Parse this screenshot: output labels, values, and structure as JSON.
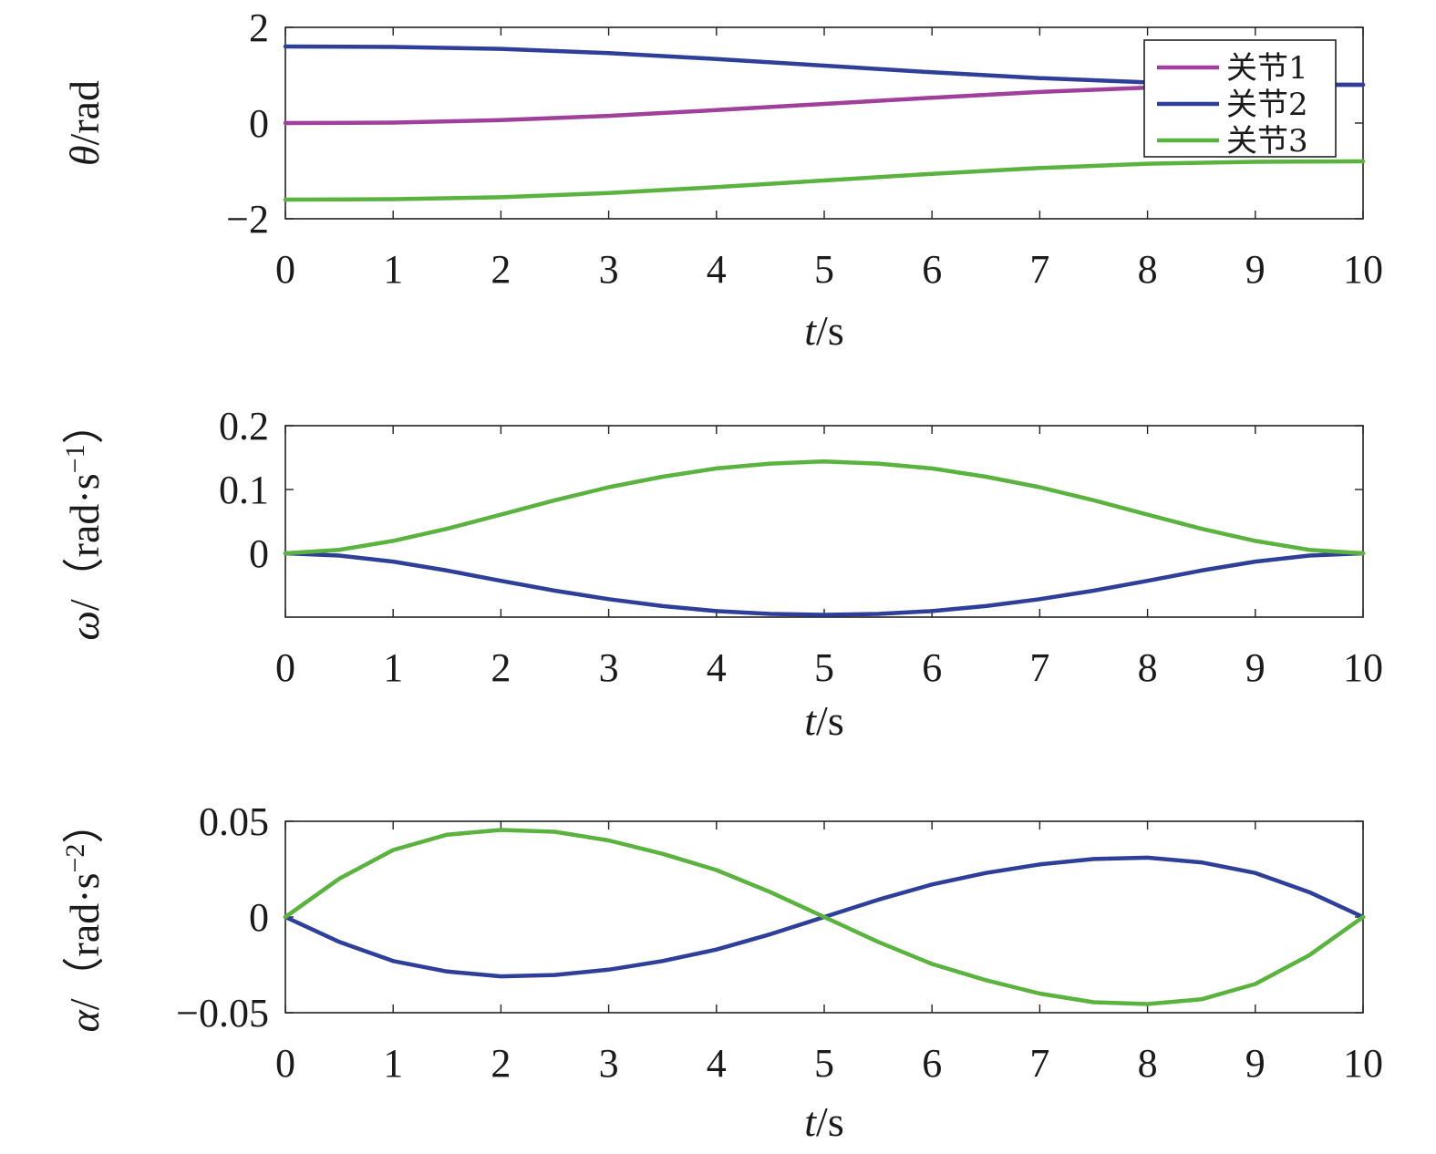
{
  "chart_data": [
    {
      "type": "line",
      "xlabel_var": "t",
      "xlabel_unit": "/s",
      "ylabel_var": "θ",
      "ylabel_unit": "/rad",
      "xlim": [
        0,
        10
      ],
      "ylim": [
        -2,
        2
      ],
      "x_ticks": [
        "0",
        "1",
        "2",
        "3",
        "4",
        "5",
        "6",
        "7",
        "8",
        "9",
        "10"
      ],
      "y_ticks": [
        {
          "v": 2,
          "label": "2"
        },
        {
          "v": 0,
          "label": "0"
        },
        {
          "v": -2,
          "label": "−2"
        }
      ],
      "grid": false,
      "legend_position": "top-right",
      "series": [
        {
          "name": "关节1",
          "color": "#a0409c",
          "x": [
            0,
            1,
            2,
            3,
            4,
            5,
            6,
            7,
            8,
            9,
            10
          ],
          "values": [
            0.0,
            0.01,
            0.06,
            0.15,
            0.27,
            0.4,
            0.53,
            0.65,
            0.74,
            0.79,
            0.8
          ]
        },
        {
          "name": "关节2",
          "color": "#2e3f9a",
          "x": [
            0,
            1,
            2,
            3,
            4,
            5,
            6,
            7,
            8,
            9,
            10
          ],
          "values": [
            1.6,
            1.59,
            1.55,
            1.46,
            1.34,
            1.2,
            1.06,
            0.94,
            0.85,
            0.81,
            0.8
          ]
        },
        {
          "name": "关节3",
          "color": "#5bb33f",
          "x": [
            0,
            1,
            2,
            3,
            4,
            5,
            6,
            7,
            8,
            9,
            10
          ],
          "values": [
            -1.6,
            -1.59,
            -1.55,
            -1.46,
            -1.34,
            -1.2,
            -1.06,
            -0.94,
            -0.85,
            -0.81,
            -0.8
          ]
        }
      ]
    },
    {
      "type": "line",
      "xlabel_var": "t",
      "xlabel_unit": "/s",
      "ylabel_var": "ω",
      "ylabel_unit": "/（rad·s",
      "ylabel_sup": "−1",
      "ylabel_close": "）",
      "xlim": [
        0,
        10
      ],
      "ylim": [
        -0.1,
        0.2
      ],
      "x_ticks": [
        "0",
        "1",
        "2",
        "3",
        "4",
        "5",
        "6",
        "7",
        "8",
        "9",
        "10"
      ],
      "y_ticks": [
        {
          "v": 0.2,
          "label": "0.2"
        },
        {
          "v": 0.1,
          "label": "0.1"
        },
        {
          "v": 0,
          "label": "0"
        }
      ],
      "grid": false,
      "series": [
        {
          "color": "#2e3f9a",
          "x": [
            0,
            0.5,
            1,
            1.5,
            2,
            2.5,
            3,
            3.5,
            4,
            4.5,
            5,
            5.5,
            6,
            6.5,
            7,
            7.5,
            8,
            8.5,
            9,
            9.5,
            10
          ],
          "values": [
            0,
            -0.0035,
            -0.013,
            -0.027,
            -0.0432,
            -0.0586,
            -0.0718,
            -0.0827,
            -0.0905,
            -0.095,
            -0.0965,
            -0.095,
            -0.0905,
            -0.0827,
            -0.0718,
            -0.0586,
            -0.0432,
            -0.027,
            -0.013,
            -0.0035,
            0
          ]
        },
        {
          "color": "#5bb33f",
          "x": [
            0,
            0.5,
            1,
            1.5,
            2,
            2.5,
            3,
            3.5,
            4,
            4.5,
            5,
            5.5,
            6,
            6.5,
            7,
            7.5,
            8,
            8.5,
            9,
            9.5,
            10
          ],
          "values": [
            0,
            0.0054,
            0.0194,
            0.0384,
            0.0605,
            0.0832,
            0.1035,
            0.12,
            0.133,
            0.1405,
            0.144,
            0.1405,
            0.133,
            0.12,
            0.1035,
            0.0832,
            0.0605,
            0.0384,
            0.0194,
            0.0054,
            0
          ]
        }
      ]
    },
    {
      "type": "line",
      "xlabel_var": "t",
      "xlabel_unit": "/s",
      "ylabel_var": "α",
      "ylabel_unit": "/（rad·s",
      "ylabel_sup": "−2",
      "ylabel_close": "）",
      "xlim": [
        0,
        10
      ],
      "ylim": [
        -0.05,
        0.05
      ],
      "x_ticks": [
        "0",
        "1",
        "2",
        "3",
        "4",
        "5",
        "6",
        "7",
        "8",
        "9",
        "10"
      ],
      "y_ticks": [
        {
          "v": 0.05,
          "label": "0.05"
        },
        {
          "v": 0,
          "label": "0"
        },
        {
          "v": -0.05,
          "label": "−0.05"
        }
      ],
      "grid": false,
      "series": [
        {
          "color": "#2e3f9a",
          "x": [
            0,
            0.5,
            1,
            1.5,
            2,
            2.5,
            3,
            3.5,
            4,
            4.5,
            5,
            5.5,
            6,
            6.5,
            7,
            7.5,
            8,
            8.5,
            9,
            9.5,
            10
          ],
          "values": [
            0,
            -0.013,
            -0.023,
            -0.0285,
            -0.031,
            -0.0303,
            -0.0275,
            -0.023,
            -0.017,
            -0.009,
            0,
            0.009,
            0.017,
            0.023,
            0.0275,
            0.0303,
            0.031,
            0.0285,
            0.023,
            0.013,
            0
          ]
        },
        {
          "color": "#5bb33f",
          "x": [
            0,
            0.5,
            1,
            1.5,
            2,
            2.5,
            3,
            3.5,
            4,
            4.5,
            5,
            5.5,
            6,
            6.5,
            7,
            7.5,
            8,
            8.5,
            9,
            9.5,
            10
          ],
          "values": [
            0,
            0.02,
            0.035,
            0.043,
            0.0455,
            0.0445,
            0.04,
            0.033,
            0.0245,
            0.013,
            0,
            -0.013,
            -0.0245,
            -0.033,
            -0.04,
            -0.0445,
            -0.0455,
            -0.043,
            -0.035,
            -0.02,
            0
          ]
        }
      ]
    }
  ]
}
